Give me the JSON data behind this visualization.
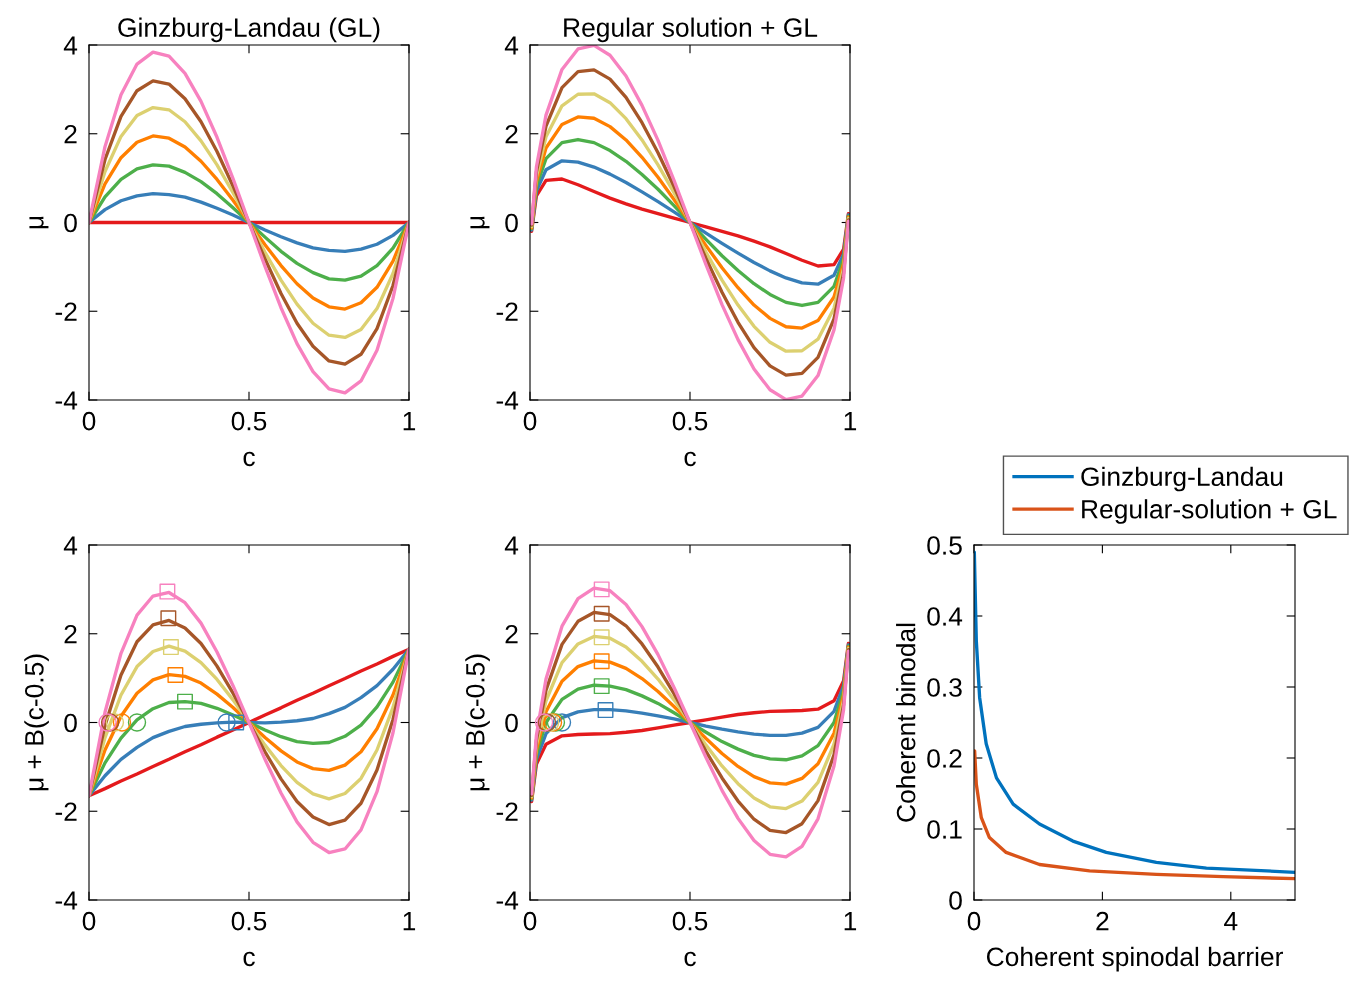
{
  "chart_data": [
    {
      "type": "line",
      "title": "Ginzburg-Landau (GL)",
      "xlabel": "c",
      "ylabel": "μ",
      "xlim": [
        0,
        1
      ],
      "ylim": [
        -4,
        4
      ],
      "xticks": [
        0,
        0.5,
        1
      ],
      "yticks": [
        -4,
        -2,
        0,
        2,
        4
      ],
      "x": [
        0,
        0.05,
        0.1,
        0.15,
        0.2,
        0.25,
        0.3,
        0.35,
        0.4,
        0.45,
        0.5,
        0.55,
        0.6,
        0.65,
        0.7,
        0.75,
        0.8,
        0.85,
        0.9,
        0.95,
        1
      ],
      "series": [
        {
          "color": "#e41a1c",
          "values": [
            0,
            0,
            0,
            0,
            0,
            0,
            0,
            0,
            0,
            0,
            0,
            0,
            0,
            0,
            0,
            0,
            0,
            0,
            0,
            0,
            0
          ]
        },
        {
          "color": "#377eb8",
          "values": [
            0,
            0.29,
            0.49,
            0.6,
            0.65,
            0.63,
            0.57,
            0.46,
            0.32,
            0.17,
            0,
            -0.17,
            -0.32,
            -0.46,
            -0.57,
            -0.63,
            -0.65,
            -0.6,
            -0.49,
            -0.29,
            0
          ]
        },
        {
          "color": "#4daf4a",
          "values": [
            0,
            0.58,
            0.97,
            1.21,
            1.3,
            1.27,
            1.13,
            0.92,
            0.65,
            0.33,
            0,
            -0.33,
            -0.65,
            -0.92,
            -1.13,
            -1.27,
            -1.3,
            -1.21,
            -0.97,
            -0.58,
            0
          ]
        },
        {
          "color": "#ff7f00",
          "values": [
            0,
            0.87,
            1.46,
            1.81,
            1.95,
            1.9,
            1.7,
            1.38,
            0.97,
            0.5,
            0,
            -0.5,
            -0.97,
            -1.38,
            -1.7,
            -1.9,
            -1.95,
            -1.81,
            -1.46,
            -0.87,
            0
          ]
        },
        {
          "color": "#dcd070",
          "values": [
            0,
            1.15,
            1.94,
            2.41,
            2.59,
            2.54,
            2.27,
            1.84,
            1.3,
            0.67,
            0,
            -0.67,
            -1.3,
            -1.84,
            -2.27,
            -2.54,
            -2.59,
            -2.41,
            -1.94,
            -1.15,
            0
          ]
        },
        {
          "color": "#a65628",
          "values": [
            0,
            1.42,
            2.39,
            2.97,
            3.19,
            3.12,
            2.79,
            2.27,
            1.6,
            0.82,
            0,
            -0.82,
            -1.6,
            -2.27,
            -2.79,
            -3.12,
            -3.19,
            -2.97,
            -2.39,
            -1.42,
            0
          ]
        },
        {
          "color": "#f781bf",
          "values": [
            0,
            1.71,
            2.88,
            3.57,
            3.84,
            3.75,
            3.36,
            2.73,
            1.92,
            0.99,
            0,
            -0.99,
            -1.92,
            -2.73,
            -3.36,
            -3.75,
            -3.84,
            -3.57,
            -2.88,
            -1.71,
            0
          ]
        }
      ]
    },
    {
      "type": "line",
      "title": "Regular solution + GL",
      "xlabel": "c",
      "ylabel": "μ",
      "xlim": [
        0,
        1
      ],
      "ylim": [
        -4,
        4
      ],
      "xticks": [
        0,
        0.5,
        1
      ],
      "yticks": [
        -4,
        -2,
        0,
        2,
        4
      ],
      "x": [
        0.005,
        0.02,
        0.05,
        0.1,
        0.15,
        0.2,
        0.25,
        0.3,
        0.35,
        0.4,
        0.45,
        0.5,
        0.55,
        0.6,
        0.65,
        0.7,
        0.75,
        0.8,
        0.85,
        0.9,
        0.95,
        0.98,
        0.995
      ],
      "series": [
        {
          "color": "#e41a1c",
          "values": [
            -0.2,
            0.6,
            0.95,
            0.98,
            0.85,
            0.7,
            0.55,
            0.42,
            0.3,
            0.2,
            0.1,
            0,
            -0.1,
            -0.2,
            -0.3,
            -0.42,
            -0.55,
            -0.7,
            -0.85,
            -0.98,
            -0.95,
            -0.6,
            0.2
          ]
        },
        {
          "color": "#377eb8",
          "values": [
            -0.17,
            0.71,
            1.19,
            1.39,
            1.36,
            1.25,
            1.09,
            0.9,
            0.69,
            0.47,
            0.24,
            0,
            -0.24,
            -0.47,
            -0.69,
            -0.9,
            -1.09,
            -1.25,
            -1.36,
            -1.39,
            -1.19,
            -0.71,
            0.17
          ]
        },
        {
          "color": "#4daf4a",
          "values": [
            -0.14,
            0.82,
            1.44,
            1.8,
            1.87,
            1.8,
            1.62,
            1.38,
            1.08,
            0.75,
            0.38,
            0,
            -0.38,
            -0.75,
            -1.08,
            -1.38,
            -1.62,
            -1.8,
            -1.87,
            -1.8,
            -1.44,
            -0.82,
            0.14
          ]
        },
        {
          "color": "#ff7f00",
          "values": [
            -0.12,
            0.92,
            1.68,
            2.21,
            2.38,
            2.35,
            2.16,
            1.86,
            1.47,
            1.02,
            0.52,
            0,
            -0.52,
            -1.02,
            -1.47,
            -1.86,
            -2.16,
            -2.35,
            -2.38,
            -2.21,
            -1.68,
            -0.92,
            0.12
          ]
        },
        {
          "color": "#dcd070",
          "values": [
            -0.09,
            1.03,
            1.93,
            2.63,
            2.89,
            2.9,
            2.7,
            2.34,
            1.86,
            1.3,
            0.67,
            0,
            -0.67,
            -1.3,
            -1.86,
            -2.34,
            -2.7,
            -2.9,
            -2.89,
            -2.63,
            -1.93,
            -1.03,
            0.09
          ]
        },
        {
          "color": "#a65628",
          "values": [
            -0.06,
            1.14,
            2.17,
            3.04,
            3.4,
            3.44,
            3.23,
            2.82,
            2.25,
            1.57,
            0.81,
            0,
            -0.81,
            -1.57,
            -2.25,
            -2.82,
            -3.23,
            -3.44,
            -3.4,
            -3.04,
            -2.17,
            -1.14,
            0.06
          ]
        },
        {
          "color": "#f781bf",
          "values": [
            -0.03,
            1.25,
            2.42,
            3.45,
            3.91,
            3.99,
            3.77,
            3.3,
            2.64,
            1.85,
            0.95,
            0,
            -0.95,
            -1.85,
            -2.64,
            -3.3,
            -3.77,
            -3.99,
            -3.91,
            -3.45,
            -2.42,
            -1.25,
            0.03
          ]
        }
      ]
    },
    {
      "type": "line",
      "xlabel": "c",
      "ylabel": "μ + B(c-0.5)",
      "xlim": [
        0,
        1
      ],
      "ylim": [
        -4,
        4
      ],
      "xticks": [
        0,
        0.5,
        1
      ],
      "yticks": [
        -4,
        -2,
        0,
        2,
        4
      ],
      "x": [
        0,
        0.05,
        0.1,
        0.15,
        0.2,
        0.25,
        0.3,
        0.35,
        0.4,
        0.45,
        0.5,
        0.55,
        0.6,
        0.65,
        0.7,
        0.75,
        0.8,
        0.85,
        0.9,
        0.95,
        1
      ],
      "series": [
        {
          "color": "#e41a1c",
          "values": [
            -1.65,
            -1.49,
            -1.32,
            -1.16,
            -0.99,
            -0.83,
            -0.66,
            -0.5,
            -0.33,
            -0.17,
            0,
            0.17,
            0.33,
            0.5,
            0.66,
            0.83,
            0.99,
            1.16,
            1.32,
            1.49,
            1.65
          ]
        },
        {
          "color": "#377eb8",
          "values": [
            -1.65,
            -1.2,
            -0.83,
            -0.56,
            -0.34,
            -0.2,
            -0.09,
            -0.04,
            -0.01,
            0.01,
            0,
            -0.01,
            0.01,
            0.04,
            0.09,
            0.2,
            0.34,
            0.56,
            0.83,
            1.2,
            1.65
          ]
        },
        {
          "color": "#4daf4a",
          "values": [
            -1.65,
            -0.91,
            -0.35,
            0.06,
            0.31,
            0.45,
            0.47,
            0.43,
            0.32,
            0.17,
            0,
            -0.17,
            -0.32,
            -0.43,
            -0.47,
            -0.45,
            -0.31,
            -0.06,
            0.35,
            0.91,
            1.65
          ]
        },
        {
          "color": "#ff7f00",
          "values": [
            -1.65,
            -0.62,
            0.14,
            0.66,
            0.96,
            1.08,
            1.04,
            0.89,
            0.64,
            0.34,
            0,
            -0.34,
            -0.64,
            -0.89,
            -1.04,
            -1.08,
            -0.96,
            -0.66,
            -0.14,
            0.62,
            1.65
          ]
        },
        {
          "color": "#dcd070",
          "values": [
            -1.65,
            -0.34,
            0.62,
            1.26,
            1.6,
            1.72,
            1.61,
            1.35,
            0.97,
            0.51,
            0,
            -0.51,
            -0.97,
            -1.35,
            -1.61,
            -1.72,
            -1.6,
            -1.26,
            -0.62,
            0.34,
            1.65
          ]
        },
        {
          "color": "#a65628",
          "values": [
            -1.65,
            -0.07,
            1.07,
            1.82,
            2.2,
            2.3,
            2.13,
            1.78,
            1.27,
            0.66,
            0,
            -0.66,
            -1.27,
            -1.78,
            -2.13,
            -2.3,
            -2.2,
            -1.82,
            -1.07,
            0.07,
            1.65
          ]
        },
        {
          "color": "#f781bf",
          "values": [
            -1.65,
            0.23,
            1.56,
            2.42,
            2.85,
            2.93,
            2.7,
            2.24,
            1.59,
            0.83,
            0,
            -0.83,
            -1.59,
            -2.24,
            -2.7,
            -2.93,
            -2.85,
            -2.42,
            -1.56,
            -0.23,
            1.65
          ]
        },
        {
          "type": "scatter",
          "marker": "square",
          "x": [
            0.46,
            0.3,
            0.27,
            0.256,
            0.248,
            0.245
          ],
          "values": [
            0,
            0.47,
            1.07,
            1.7,
            2.35,
            2.95
          ],
          "colors": [
            "#377eb8",
            "#4daf4a",
            "#ff7f00",
            "#dcd070",
            "#a65628",
            "#f781bf"
          ]
        },
        {
          "type": "scatter",
          "marker": "circle",
          "x": [
            0.43,
            0.15,
            0.103,
            0.081,
            0.066,
            0.058
          ],
          "values": [
            0,
            0,
            0,
            0,
            0,
            0
          ],
          "colors": [
            "#377eb8",
            "#4daf4a",
            "#ff7f00",
            "#dcd070",
            "#a65628",
            "#f781bf"
          ]
        }
      ]
    },
    {
      "type": "line",
      "xlabel": "c",
      "ylabel": "μ + B(c-0.5)",
      "xlim": [
        0,
        1
      ],
      "ylim": [
        -4,
        4
      ],
      "xticks": [
        0,
        0.5,
        1
      ],
      "yticks": [
        -4,
        -2,
        0,
        2,
        4
      ],
      "x": [
        0.005,
        0.02,
        0.05,
        0.1,
        0.15,
        0.2,
        0.25,
        0.3,
        0.35,
        0.4,
        0.45,
        0.5,
        0.55,
        0.6,
        0.65,
        0.7,
        0.75,
        0.8,
        0.85,
        0.9,
        0.95,
        0.98,
        0.995
      ],
      "series": [
        {
          "color": "#e41a1c",
          "values": [
            -1.78,
            -0.94,
            -0.49,
            -0.3,
            -0.27,
            -0.26,
            -0.25,
            -0.22,
            -0.18,
            -0.12,
            -0.06,
            0,
            0.06,
            0.12,
            0.18,
            0.22,
            0.25,
            0.26,
            0.27,
            0.3,
            0.49,
            0.94,
            1.78
          ]
        },
        {
          "color": "#377eb8",
          "values": [
            -1.75,
            -0.83,
            -0.25,
            0.11,
            0.24,
            0.29,
            0.29,
            0.26,
            0.21,
            0.15,
            0.08,
            0,
            -0.08,
            -0.15,
            -0.21,
            -0.26,
            -0.29,
            -0.29,
            -0.24,
            -0.11,
            0.25,
            0.83,
            1.75
          ]
        },
        {
          "color": "#4daf4a",
          "values": [
            -1.72,
            -0.72,
            0,
            0.52,
            0.75,
            0.84,
            0.82,
            0.74,
            0.6,
            0.43,
            0.22,
            0,
            -0.22,
            -0.43,
            -0.6,
            -0.74,
            -0.82,
            -0.84,
            -0.75,
            -0.52,
            0,
            0.72,
            1.72
          ]
        },
        {
          "color": "#ff7f00",
          "values": [
            -1.7,
            -0.62,
            0.24,
            0.93,
            1.26,
            1.39,
            1.36,
            1.22,
            0.99,
            0.7,
            0.36,
            0,
            -0.36,
            -0.7,
            -0.99,
            -1.22,
            -1.36,
            -1.39,
            -1.26,
            -0.93,
            -0.24,
            0.62,
            1.7
          ]
        },
        {
          "color": "#dcd070",
          "values": [
            -1.67,
            -0.51,
            0.49,
            1.35,
            1.77,
            1.94,
            1.9,
            1.7,
            1.38,
            0.98,
            0.51,
            0,
            -0.51,
            -0.98,
            -1.38,
            -1.7,
            -1.9,
            -1.94,
            -1.77,
            -1.35,
            -0.49,
            0.51,
            1.67
          ]
        },
        {
          "color": "#a65628",
          "values": [
            -1.64,
            -0.4,
            0.73,
            1.76,
            2.28,
            2.48,
            2.43,
            2.18,
            1.77,
            1.25,
            0.65,
            0,
            -0.65,
            -1.25,
            -1.77,
            -2.18,
            -2.43,
            -2.48,
            -2.28,
            -1.76,
            -0.73,
            0.4,
            1.64
          ]
        },
        {
          "color": "#f781bf",
          "values": [
            -1.61,
            -0.29,
            0.98,
            2.17,
            2.79,
            3.03,
            2.97,
            2.66,
            2.16,
            1.53,
            0.79,
            0,
            -0.79,
            -1.53,
            -2.16,
            -2.66,
            -2.97,
            -3.03,
            -2.79,
            -2.17,
            -0.98,
            0.29,
            1.61
          ]
        },
        {
          "type": "scatter",
          "marker": "square",
          "x": [
            0.236,
            0.224,
            0.224,
            0.224,
            0.224,
            0.224
          ],
          "values": [
            0.28,
            0.82,
            1.38,
            1.92,
            2.45,
            3.0
          ],
          "colors": [
            "#377eb8",
            "#4daf4a",
            "#ff7f00",
            "#dcd070",
            "#a65628",
            "#f781bf"
          ]
        },
        {
          "type": "scatter",
          "marker": "circle",
          "x": [
            0.1,
            0.081,
            0.072,
            0.063,
            0.053,
            0.044
          ],
          "values": [
            0,
            0,
            0,
            0,
            0,
            0
          ],
          "colors": [
            "#377eb8",
            "#4daf4a",
            "#ff7f00",
            "#dcd070",
            "#a65628",
            "#f781bf"
          ]
        }
      ]
    },
    {
      "type": "line",
      "xlabel": "Coherent spinodal barrier",
      "ylabel": "Coherent binodal",
      "xlim": [
        0,
        5
      ],
      "ylim": [
        0,
        0.5
      ],
      "xticks": [
        0,
        2,
        4
      ],
      "yticks": [
        0,
        0.1,
        0.2,
        0.3,
        0.4,
        0.5
      ],
      "legend": "top",
      "series": [
        {
          "name": "Ginzburg-Landau",
          "color": "#0072bd",
          "x": [
            0.005,
            0.036,
            0.088,
            0.19,
            0.35,
            0.61,
            1.02,
            1.54,
            2.06,
            2.84,
            3.62,
            5
          ],
          "values": [
            0.49,
            0.365,
            0.285,
            0.22,
            0.172,
            0.135,
            0.107,
            0.083,
            0.067,
            0.053,
            0.045,
            0.039
          ]
        },
        {
          "name": "Regular-solution + GL",
          "color": "#d95319",
          "x": [
            0.01,
            0.036,
            0.114,
            0.24,
            0.5,
            1.02,
            1.8,
            2.84,
            3.88,
            5
          ],
          "values": [
            0.21,
            0.163,
            0.116,
            0.088,
            0.067,
            0.05,
            0.041,
            0.036,
            0.033,
            0.03
          ]
        }
      ]
    }
  ]
}
